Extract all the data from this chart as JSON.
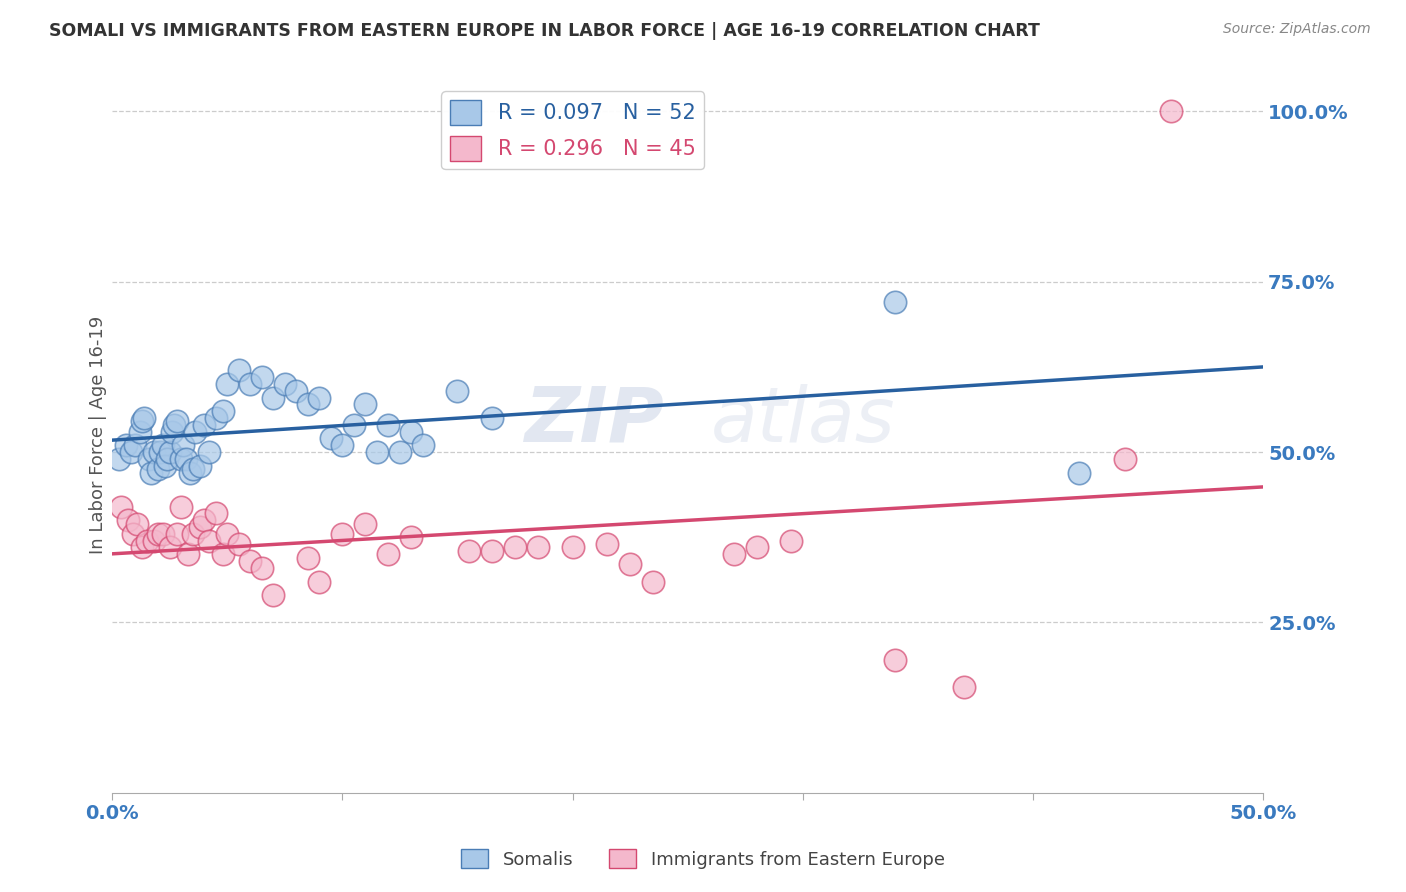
{
  "title": "SOMALI VS IMMIGRANTS FROM EASTERN EUROPE IN LABOR FORCE | AGE 16-19 CORRELATION CHART",
  "source": "Source: ZipAtlas.com",
  "ylabel": "In Labor Force | Age 16-19",
  "xlim": [
    0.0,
    0.5
  ],
  "ylim": [
    0.0,
    1.05
  ],
  "x_ticks": [
    0.0,
    0.1,
    0.2,
    0.3,
    0.4,
    0.5
  ],
  "x_tick_labels": [
    "0.0%",
    "",
    "",
    "",
    "",
    "50.0%"
  ],
  "y_ticks_right": [
    0.25,
    0.5,
    0.75,
    1.0
  ],
  "y_tick_labels_right": [
    "25.0%",
    "50.0%",
    "75.0%",
    "100.0%"
  ],
  "somali_color": "#a8c8e8",
  "eastern_europe_color": "#f4b8cc",
  "somali_edge_color": "#4a7db5",
  "eastern_europe_edge_color": "#d44870",
  "somali_line_color": "#2860a0",
  "eastern_europe_line_color": "#d44870",
  "legend_R1": "R = 0.097",
  "legend_N1": "N = 52",
  "legend_R2": "R = 0.296",
  "legend_N2": "N = 45",
  "watermark": "ZIPatlas",
  "somali_x": [
    0.003,
    0.006,
    0.008,
    0.01,
    0.012,
    0.013,
    0.014,
    0.016,
    0.017,
    0.018,
    0.02,
    0.021,
    0.022,
    0.023,
    0.024,
    0.025,
    0.026,
    0.027,
    0.028,
    0.03,
    0.031,
    0.032,
    0.034,
    0.035,
    0.036,
    0.038,
    0.04,
    0.042,
    0.045,
    0.048,
    0.05,
    0.055,
    0.06,
    0.065,
    0.07,
    0.075,
    0.08,
    0.085,
    0.09,
    0.095,
    0.1,
    0.105,
    0.11,
    0.115,
    0.12,
    0.125,
    0.13,
    0.135,
    0.15,
    0.165,
    0.34,
    0.42
  ],
  "somali_y": [
    0.49,
    0.51,
    0.5,
    0.51,
    0.53,
    0.545,
    0.55,
    0.49,
    0.47,
    0.5,
    0.475,
    0.5,
    0.51,
    0.48,
    0.49,
    0.5,
    0.53,
    0.54,
    0.545,
    0.49,
    0.51,
    0.49,
    0.47,
    0.475,
    0.53,
    0.48,
    0.54,
    0.5,
    0.55,
    0.56,
    0.6,
    0.62,
    0.6,
    0.61,
    0.58,
    0.6,
    0.59,
    0.57,
    0.58,
    0.52,
    0.51,
    0.54,
    0.57,
    0.5,
    0.54,
    0.5,
    0.53,
    0.51,
    0.59,
    0.55,
    0.72,
    0.47
  ],
  "eastern_x": [
    0.004,
    0.007,
    0.009,
    0.011,
    0.013,
    0.015,
    0.018,
    0.02,
    0.022,
    0.025,
    0.028,
    0.03,
    0.033,
    0.035,
    0.038,
    0.04,
    0.042,
    0.045,
    0.048,
    0.05,
    0.055,
    0.06,
    0.065,
    0.07,
    0.085,
    0.09,
    0.1,
    0.11,
    0.12,
    0.13,
    0.155,
    0.165,
    0.175,
    0.185,
    0.2,
    0.215,
    0.225,
    0.235,
    0.27,
    0.28,
    0.295,
    0.34,
    0.37,
    0.44,
    0.46
  ],
  "eastern_y": [
    0.42,
    0.4,
    0.38,
    0.395,
    0.36,
    0.37,
    0.37,
    0.38,
    0.38,
    0.36,
    0.38,
    0.42,
    0.35,
    0.38,
    0.39,
    0.4,
    0.37,
    0.41,
    0.35,
    0.38,
    0.365,
    0.34,
    0.33,
    0.29,
    0.345,
    0.31,
    0.38,
    0.395,
    0.35,
    0.375,
    0.355,
    0.355,
    0.36,
    0.36,
    0.36,
    0.365,
    0.335,
    0.31,
    0.35,
    0.36,
    0.37,
    0.195,
    0.155,
    0.49,
    1.0
  ],
  "background_color": "#ffffff",
  "grid_color": "#cccccc"
}
